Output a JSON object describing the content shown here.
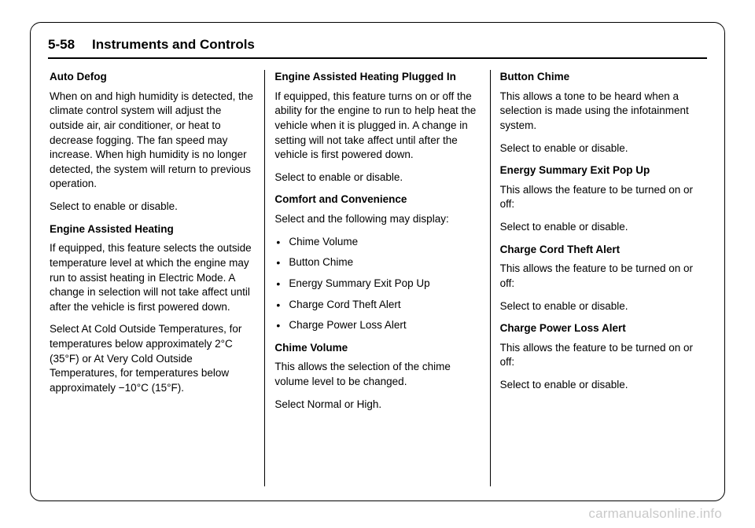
{
  "header": {
    "page_num": "5-58",
    "section": "Instruments and Controls"
  },
  "col1": {
    "h1": "Auto Defog",
    "p1": "When on and high humidity is detected, the climate control system will adjust the outside air, air conditioner, or heat to decrease fogging. The fan speed may increase. When high humidity is no longer detected, the system will return to previous operation.",
    "p2": "Select to enable or disable.",
    "h2": "Engine Assisted Heating",
    "p3": "If equipped, this feature selects the outside temperature level at which the engine may run to assist heating in Electric Mode. A change in selection will not take affect until after the vehicle is first powered down.",
    "p4": "Select At Cold Outside Temperatures, for temperatures below approximately 2°C (35°F) or At Very Cold Outside Temperatures, for temperatures below approximately −10°C (15°F)."
  },
  "col2": {
    "h1": "Engine Assisted Heating Plugged In",
    "p1": "If equipped, this feature turns on or off the ability for the engine to run to help heat the vehicle when it is plugged in. A change in setting will not take affect until after the vehicle is first powered down.",
    "p2": "Select to enable or disable.",
    "h2": "Comfort and Convenience",
    "p3": "Select and the following may display:",
    "bullets": {
      "b1": "Chime Volume",
      "b2": "Button Chime",
      "b3": "Energy Summary Exit Pop Up",
      "b4": "Charge Cord Theft Alert",
      "b5": "Charge Power Loss Alert"
    },
    "h3": "Chime Volume",
    "p4": "This allows the selection of the chime volume level to be changed.",
    "p5": "Select Normal or High."
  },
  "col3": {
    "h1": "Button Chime",
    "p1": "This allows a tone to be heard when a selection is made using the infotainment system.",
    "p2": "Select to enable or disable.",
    "h2": "Energy Summary Exit Pop Up",
    "p3": "This allows the feature to be turned on or off:",
    "p4": "Select to enable or disable.",
    "h3": "Charge Cord Theft Alert",
    "p5": "This allows the feature to be turned on or off:",
    "p6": "Select to enable or disable.",
    "h4": "Charge Power Loss Alert",
    "p7": "This allows the feature to be turned on or off:",
    "p8": "Select to enable or disable."
  },
  "watermark": "carmanualsonline.info"
}
